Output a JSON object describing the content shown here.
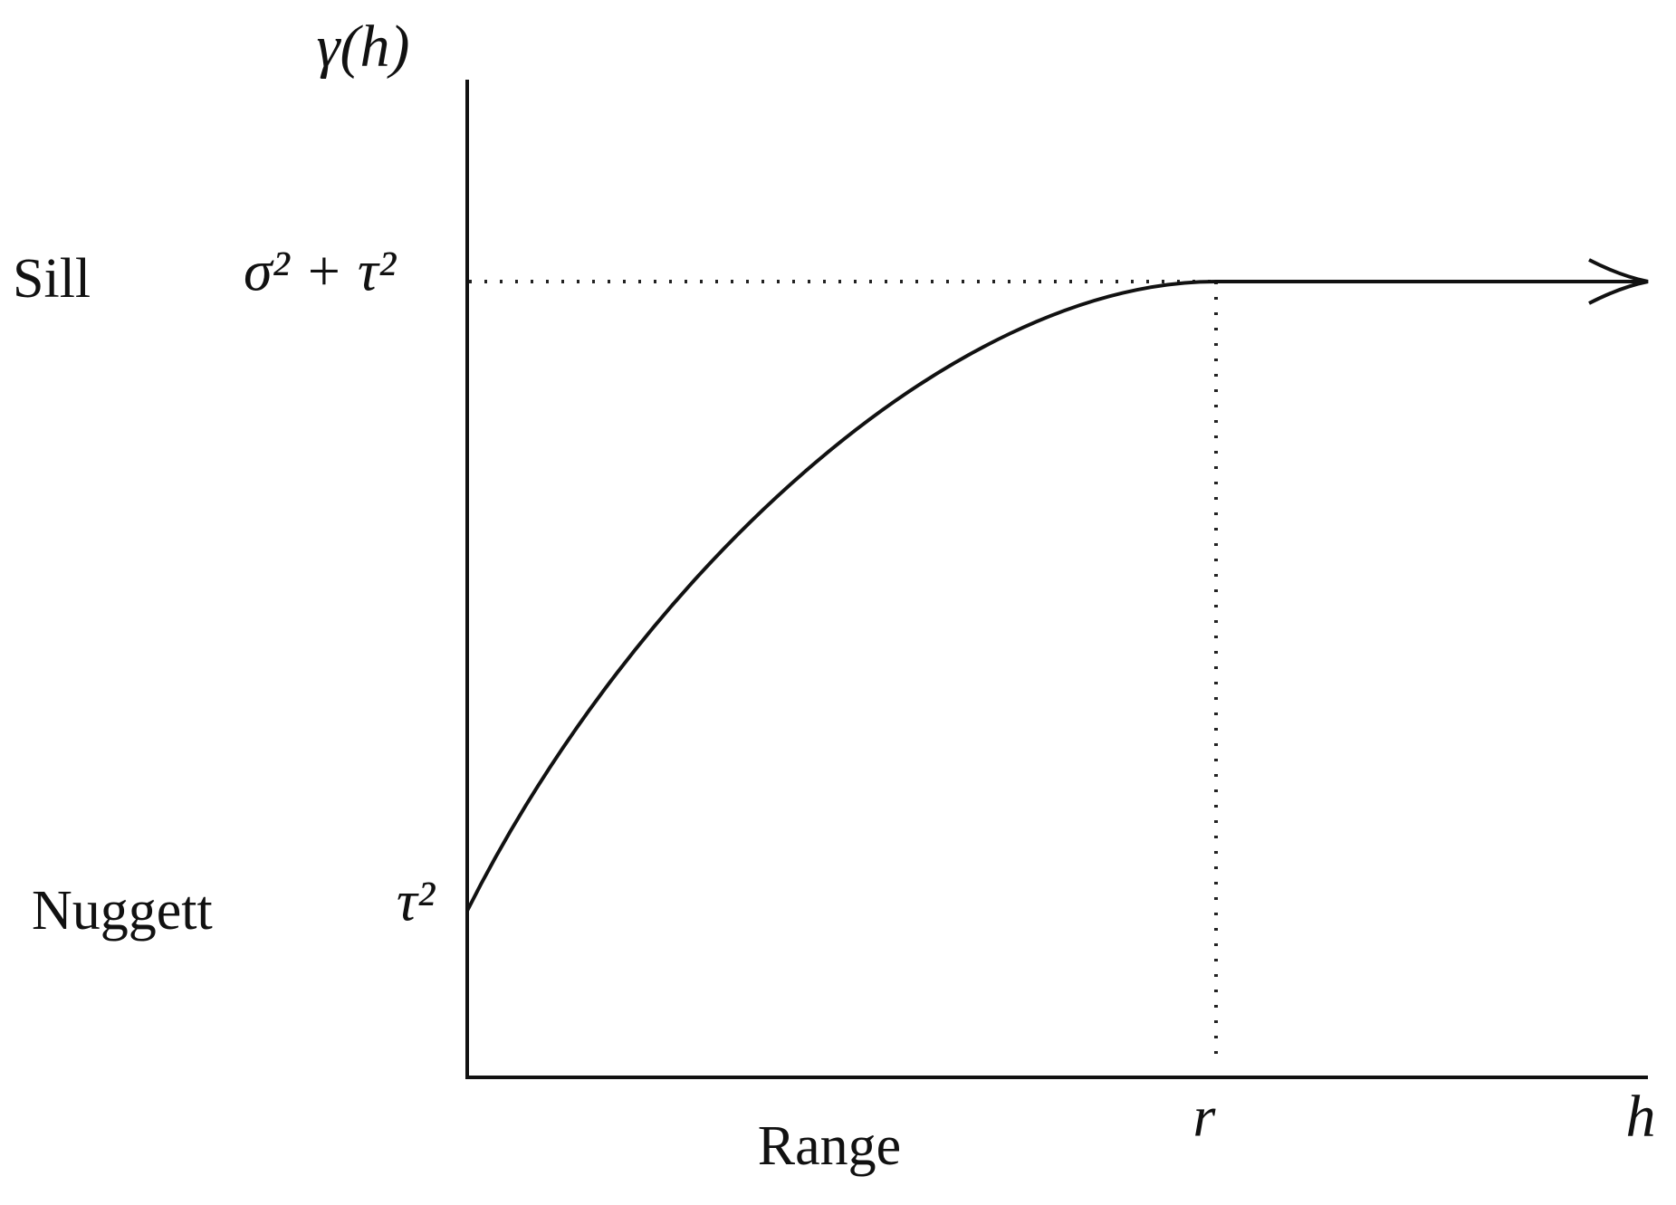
{
  "y_axis_label": "γ(h)",
  "x_axis_label": "h",
  "sill": {
    "label": "Sill",
    "value": "σ² + τ²"
  },
  "nugget": {
    "label": "Nuggett",
    "value": "τ²"
  },
  "range": {
    "label": "Range",
    "value": "r"
  }
}
